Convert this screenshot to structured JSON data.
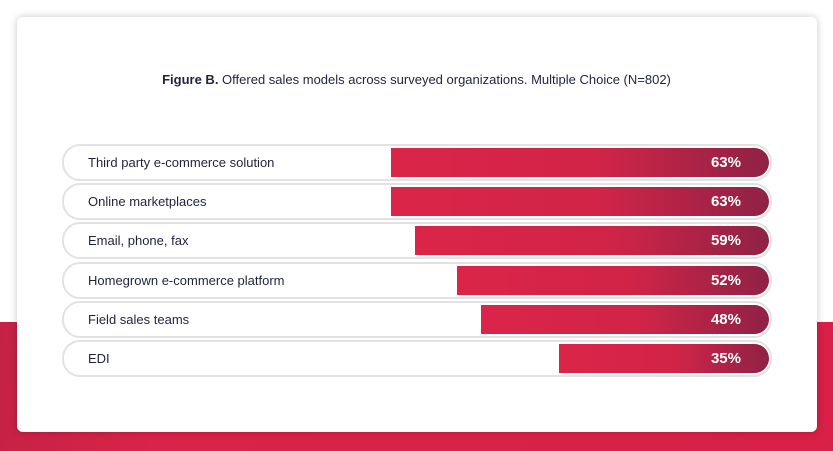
{
  "title_bold": "Figure B.",
  "title_rest": " Offered sales models across surveyed organizations. Multiple Choice (N=802)",
  "chart_data": {
    "type": "bar",
    "orientation": "horizontal",
    "title": "Figure B. Offered sales models across surveyed organizations. Multiple Choice (N=802)",
    "categories": [
      "Third party e-commerce solution",
      "Online marketplaces",
      "Email, phone, fax",
      "Homegrown e-commerce platform",
      "Field sales teams",
      "EDI"
    ],
    "values": [
      63,
      63,
      59,
      52,
      48,
      35
    ],
    "labels": [
      "63%",
      "63%",
      "59%",
      "52%",
      "48%",
      "35%"
    ],
    "unit": "%",
    "xlim": [
      0,
      100
    ],
    "grid": false,
    "colors": {
      "bar_start": "#da2548",
      "bar_end": "#8f2246",
      "background_band": "#d92348"
    }
  }
}
